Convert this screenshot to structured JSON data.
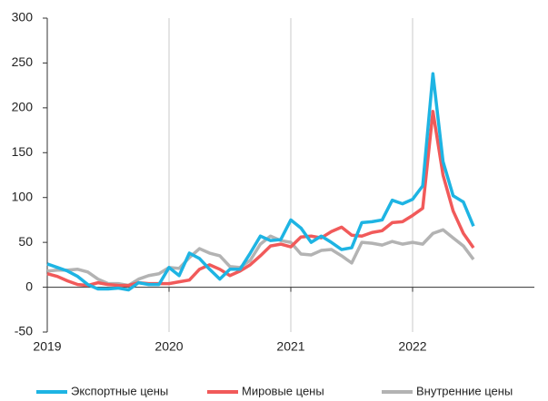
{
  "chart_data": {
    "type": "line",
    "x": [
      2019,
      2019.083,
      2019.167,
      2019.25,
      2019.333,
      2019.417,
      2019.5,
      2019.583,
      2019.667,
      2019.75,
      2019.833,
      2019.917,
      2020,
      2020.083,
      2020.167,
      2020.25,
      2020.333,
      2020.417,
      2020.5,
      2020.583,
      2020.667,
      2020.75,
      2020.833,
      2020.917,
      2021,
      2021.083,
      2021.167,
      2021.25,
      2021.333,
      2021.417,
      2021.5,
      2021.583,
      2021.667,
      2021.75,
      2021.833,
      2021.917,
      2022,
      2022.083,
      2022.167,
      2022.25,
      2022.333,
      2022.417,
      2022.5
    ],
    "series": [
      {
        "name": "Экспортные цены",
        "color": "#1eb4e3",
        "values": [
          26,
          22,
          18,
          12,
          3,
          -2,
          -2,
          -1,
          -3,
          5,
          3,
          3,
          22,
          13,
          38,
          32,
          20,
          9,
          20,
          20,
          38,
          57,
          52,
          53,
          75,
          66,
          50,
          57,
          50,
          42,
          44,
          72,
          73,
          75,
          97,
          93,
          98,
          113,
          238,
          140,
          102,
          95,
          68
        ]
      },
      {
        "name": "Мировые цены",
        "color": "#f15a5a",
        "values": [
          15,
          12,
          7,
          3,
          2,
          5,
          3,
          2,
          2,
          5,
          4,
          4,
          4,
          6,
          8,
          20,
          25,
          20,
          13,
          18,
          25,
          35,
          46,
          48,
          45,
          56,
          57,
          55,
          62,
          67,
          58,
          57,
          61,
          63,
          72,
          73,
          80,
          88,
          196,
          125,
          85,
          60,
          44
        ]
      },
      {
        "name": "Внутренние цены",
        "color": "#b3b3b3",
        "values": [
          18,
          19,
          19,
          20,
          17,
          9,
          4,
          4,
          2,
          9,
          13,
          15,
          22,
          21,
          33,
          43,
          38,
          35,
          23,
          22,
          30,
          48,
          57,
          52,
          50,
          37,
          36,
          41,
          42,
          35,
          27,
          50,
          49,
          47,
          51,
          48,
          50,
          48,
          60,
          64,
          55,
          46,
          31
        ]
      }
    ],
    "xlim": [
      2019,
      2023
    ],
    "xticks": [
      2019,
      2020,
      2021,
      2022
    ],
    "ylim": [
      -50,
      300
    ],
    "yticks": [
      -50,
      0,
      50,
      100,
      150,
      200,
      250,
      300
    ],
    "grid": "x",
    "legend": "bottom"
  }
}
